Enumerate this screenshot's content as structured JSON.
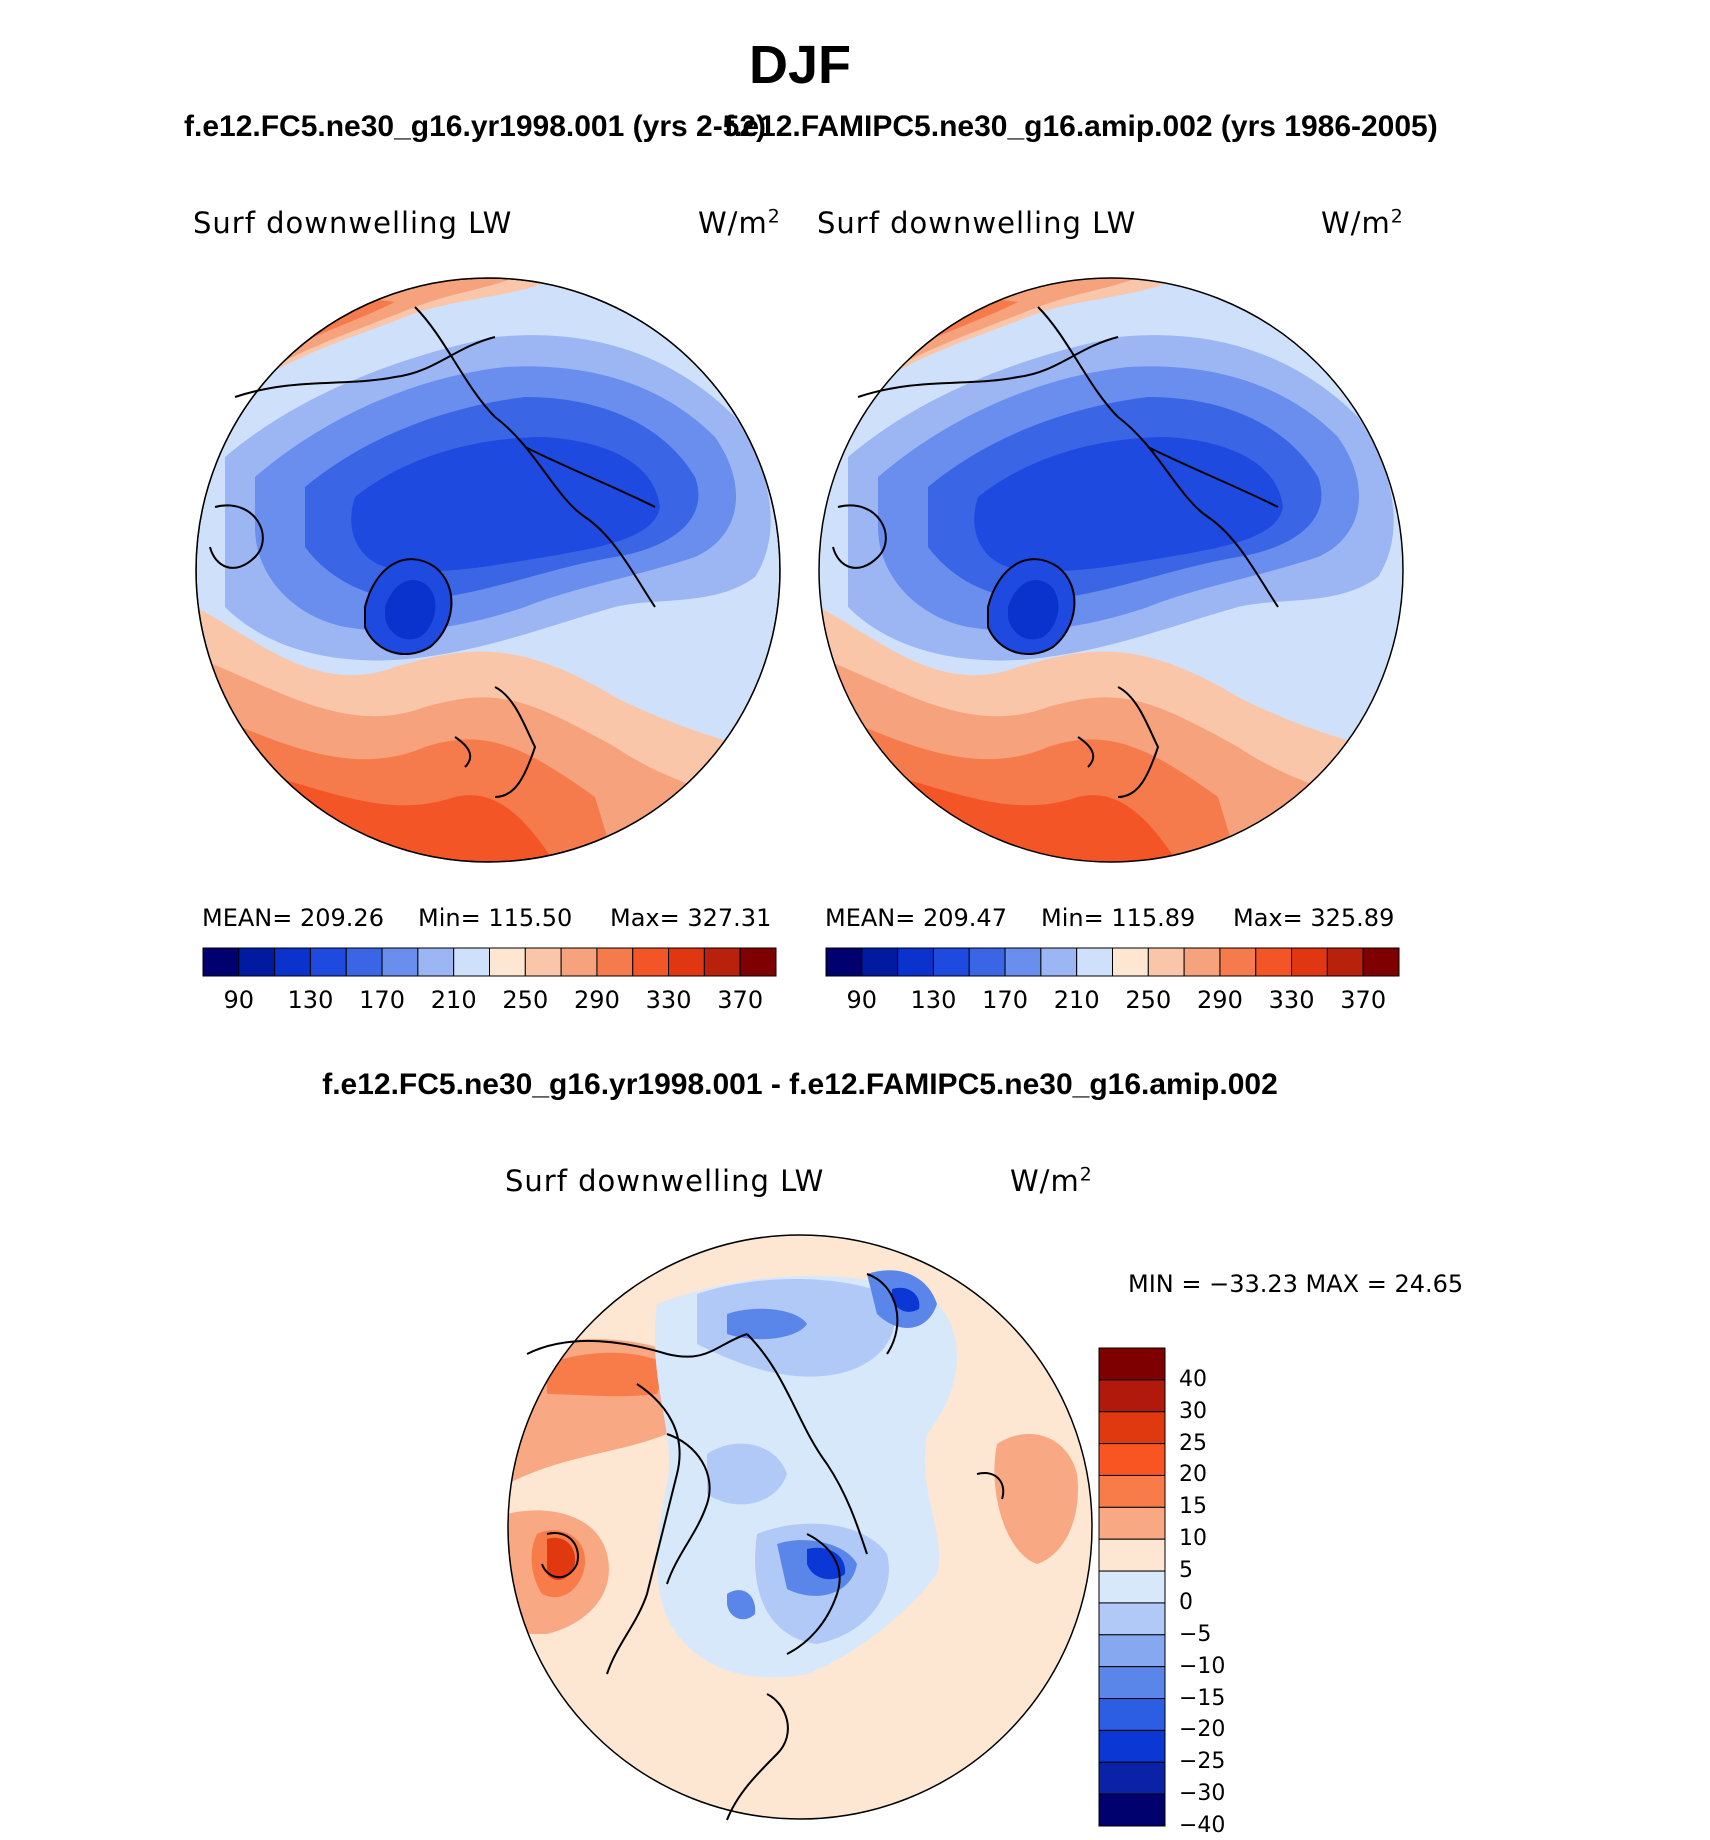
{
  "figure": {
    "title": "DJF",
    "left_case": "f.e12.FC5.ne30_g16.yr1998.001 (yrs 2-52)",
    "right_case": "f.e12.FAMIPC5.ne30_g16.amip.002 (yrs 1986-2005)",
    "diff_case": "f.e12.FC5.ne30_g16.yr1998.001 - f.e12.FAMIPC5.ne30_g16.amip.002"
  },
  "panels": [
    {
      "variable": "Surf downwelling LW",
      "units": "W/m",
      "units_exp": "2",
      "stats": {
        "mean": "MEAN= 209.26",
        "min": "Min= 115.50",
        "max": "Max= 327.31"
      }
    },
    {
      "variable": "Surf downwelling LW",
      "units": "W/m",
      "units_exp": "2",
      "stats": {
        "mean": "MEAN= 209.47",
        "min": "Min= 115.89",
        "max": "Max= 325.89"
      }
    }
  ],
  "diff_panel": {
    "variable": "Surf downwelling LW",
    "units": "W/m",
    "units_exp": "2",
    "minmax": "MIN = −33.23 MAX =  24.65"
  },
  "colorbar_abs": {
    "colors": [
      "#00006e",
      "#001aa0",
      "#0a32cc",
      "#1f4ae0",
      "#3a66e6",
      "#6a8eee",
      "#9cb6f4",
      "#cfe1fa",
      "#fde6d2",
      "#f9c6aa",
      "#f6a27c",
      "#f57b4c",
      "#f35527",
      "#e13612",
      "#b8210b",
      "#7e0000"
    ],
    "labels": [
      "90",
      "130",
      "170",
      "210",
      "250",
      "290",
      "330",
      "370"
    ]
  },
  "colorbar_diff": {
    "colors": [
      "#7e0000",
      "#b0190c",
      "#e0380f",
      "#f85523",
      "#f87c4a",
      "#f8a882",
      "#fde6d2",
      "#d8e8fb",
      "#b0c9f6",
      "#86a8f0",
      "#5a86ea",
      "#2c5ee4",
      "#0b38d4",
      "#0a22a8",
      "#00006e"
    ],
    "labels": [
      "40",
      "30",
      "25",
      "20",
      "15",
      "10",
      "5",
      "0",
      "−5",
      "−10",
      "−15",
      "−20",
      "−25",
      "−30",
      "−40"
    ]
  }
}
